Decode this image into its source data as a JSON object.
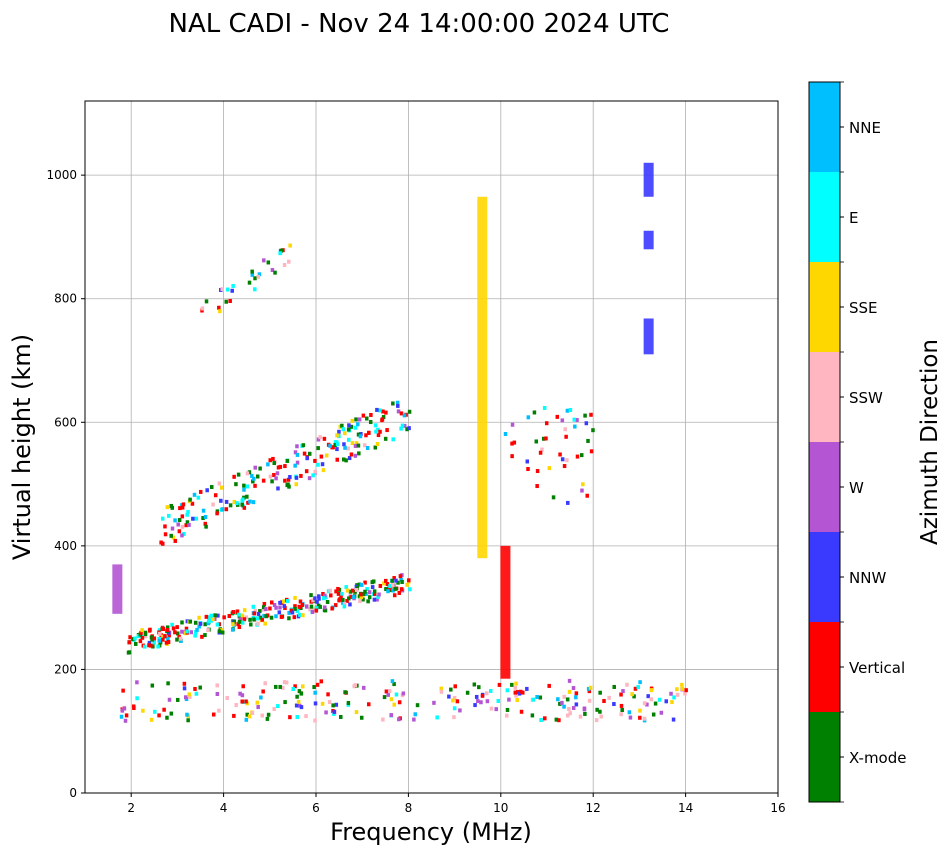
{
  "chart_data": {
    "type": "scatter",
    "title": "NAL CADI - Nov 24 14:00:00 2024 UTC",
    "xlabel": "Frequency (MHz)",
    "ylabel": "Virtual height (km)",
    "xlim": [
      1,
      16
    ],
    "ylim": [
      0,
      1120
    ],
    "xticks": [
      2,
      4,
      6,
      8,
      10,
      12,
      14,
      16
    ],
    "yticks": [
      0,
      200,
      400,
      600,
      800,
      1000
    ],
    "grid": true,
    "colorbar": {
      "label": "Azimuth Direction",
      "categories": [
        {
          "name": "X-mode",
          "color": "#008000"
        },
        {
          "name": "Vertical",
          "color": "#ff0000"
        },
        {
          "name": "NNW",
          "color": "#3a3aff"
        },
        {
          "name": "W",
          "color": "#b455d3"
        },
        {
          "name": "SSW",
          "color": "#ffb6c1"
        },
        {
          "name": "SSE",
          "color": "#ffd700"
        },
        {
          "name": "E",
          "color": "#00ffff"
        },
        {
          "name": "NNE",
          "color": "#00bfff"
        }
      ]
    },
    "echo_bands": [
      {
        "description": "low E-layer trace",
        "x_range": [
          1.7,
          14.0
        ],
        "y_range": [
          120,
          185
        ],
        "cat_weights": [
          3,
          3,
          1,
          2,
          3,
          2,
          1,
          1
        ],
        "count": 260
      },
      {
        "description": "F-layer first hop",
        "x_range": [
          1.9,
          8.0
        ],
        "y_range": [
          230,
          360
        ],
        "cat_weights": [
          3,
          4,
          1,
          1,
          1,
          1,
          2,
          1
        ],
        "count": 330
      },
      {
        "description": "second hop trace",
        "x_range": [
          2.6,
          8.0
        ],
        "y_range": [
          400,
          650
        ],
        "cat_weights": [
          3,
          4,
          1,
          1,
          1,
          1,
          2,
          1
        ],
        "count": 220
      },
      {
        "description": "third hop trace",
        "x_range": [
          3.3,
          5.5
        ],
        "y_range": [
          750,
          900
        ],
        "cat_weights": [
          2,
          2,
          1,
          1,
          1,
          1,
          2,
          1
        ],
        "count": 30
      },
      {
        "description": "scattered echoes near 10-12 MHz",
        "x_range": [
          10.0,
          12.0
        ],
        "y_range": [
          470,
          630
        ],
        "cat_weights": [
          3,
          4,
          1,
          2,
          2,
          1,
          1,
          1
        ],
        "count": 45
      }
    ],
    "vertical_columns": [
      {
        "x": 9.6,
        "y_range": [
          380,
          965
        ],
        "category": "SSE"
      },
      {
        "x": 10.1,
        "y_range": [
          185,
          400
        ],
        "category": "Vertical"
      },
      {
        "x": 13.2,
        "y_range": [
          965,
          1020
        ],
        "category": "NNW"
      },
      {
        "x": 13.2,
        "y_range": [
          880,
          910
        ],
        "category": "NNW"
      },
      {
        "x": 13.2,
        "y_range": [
          710,
          768
        ],
        "category": "NNW"
      },
      {
        "x": 1.7,
        "y_range": [
          290,
          370
        ],
        "category": "W"
      }
    ]
  }
}
